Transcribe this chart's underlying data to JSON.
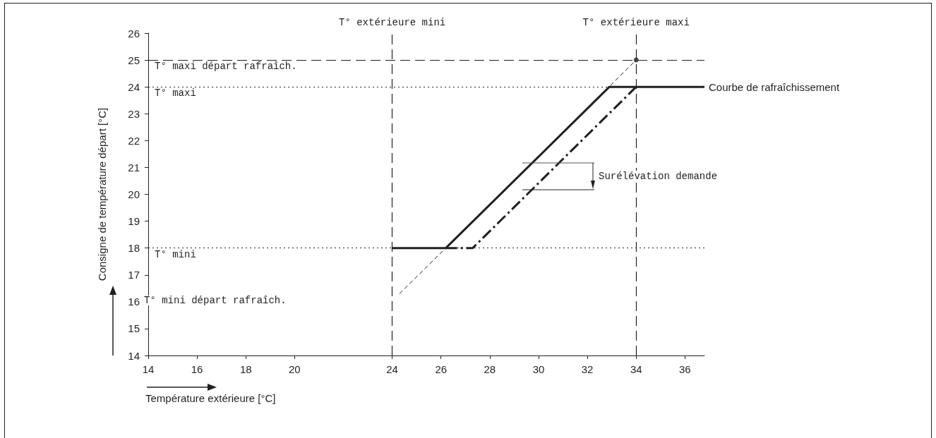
{
  "chart_data": {
    "type": "line",
    "xlabel": "Température extérieure [°C]",
    "ylabel": "Consigne de température départ [°C]",
    "xlim": [
      14,
      36.8
    ],
    "xticks": [
      14,
      16,
      18,
      20,
      24,
      26,
      28,
      30,
      32,
      34,
      36
    ],
    "ylim": [
      14,
      26
    ],
    "yticks": [
      14,
      15,
      16,
      17,
      18,
      19,
      20,
      21,
      22,
      23,
      24,
      25,
      26
    ],
    "grid": false,
    "legend": false,
    "series": [
      {
        "name": "Courbe de rafraîchissement",
        "color": "#231f20",
        "line_style": "solid",
        "x": [
          24,
          26.2,
          32.9,
          36.8
        ],
        "values": [
          18,
          18,
          24,
          24
        ]
      },
      {
        "color": "#231f20",
        "line_style": "dashed",
        "x": [
          26.2,
          27.3,
          34
        ],
        "values": [
          18,
          18,
          24
        ]
      },
      {
        "color": "#231f20",
        "line_style": "dashed",
        "x": [
          24.3,
          34
        ],
        "values": [
          16.3,
          25
        ]
      },
      {
        "type": "scatter",
        "marker": "circle",
        "color": "#231f20",
        "x": [
          34
        ],
        "values": [
          25
        ]
      }
    ],
    "ref_lines": [
      {
        "axis": "x",
        "value": 24,
        "label": "T° extérieure mini",
        "line_style": "dashed"
      },
      {
        "axis": "x",
        "value": 34,
        "label": "T° extérieure maxi",
        "line_style": "dashed"
      },
      {
        "axis": "y",
        "value": 25,
        "label": "T° maxi départ rafraîch.",
        "line_style": "dashed"
      },
      {
        "axis": "y",
        "value": 24,
        "label": "T° maxi",
        "line_style": "dotted"
      },
      {
        "axis": "y",
        "value": 18,
        "label": "T° mini",
        "line_style": "dotted"
      }
    ],
    "annotations": [
      "T° mini départ rafraîch.",
      "Surélévation demande"
    ]
  }
}
